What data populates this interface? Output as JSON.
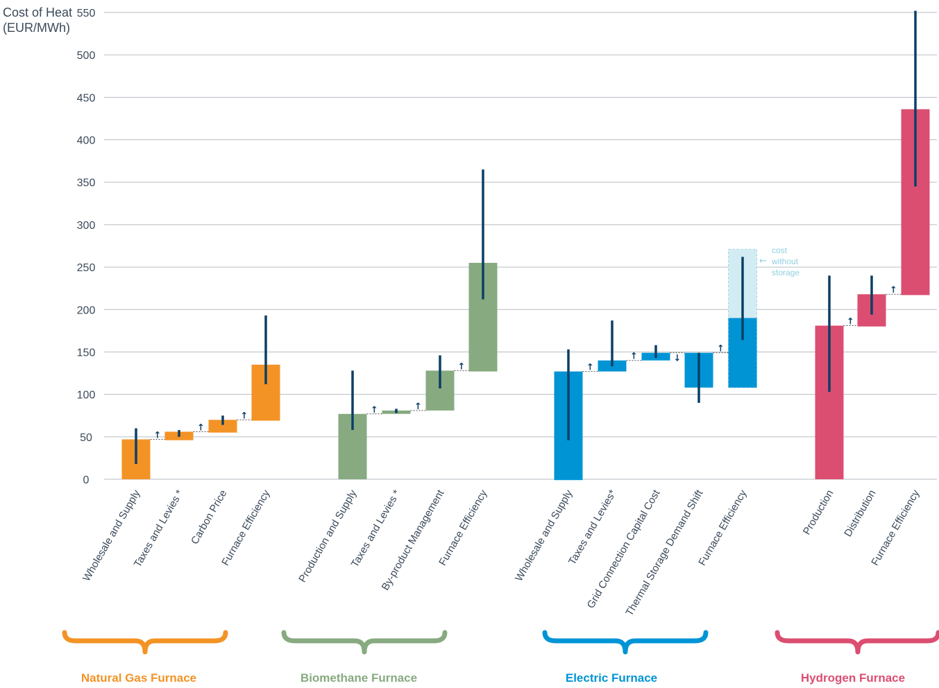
{
  "chart_data": {
    "type": "bar",
    "subtype": "waterfall",
    "ylabel_line1": "Cost of Heat",
    "ylabel_line2": "(EUR/MWh)",
    "ylim": [
      0,
      550
    ],
    "yticks": [
      0,
      50,
      100,
      150,
      200,
      250,
      300,
      350,
      400,
      450,
      500,
      550
    ],
    "grid": true,
    "groups": [
      {
        "name": "Natural Gas Furnace",
        "color": "#f39325",
        "bars": [
          {
            "label": "Wholesale and Supply",
            "base": 0,
            "top": 47,
            "err_low": 18,
            "err_high": 60
          },
          {
            "label": "Taxes and Levies *",
            "base": 46,
            "top": 56,
            "err_low": 50,
            "err_high": 58,
            "step": "up"
          },
          {
            "label": "Carbon Price",
            "base": 55,
            "top": 70,
            "err_low": 64,
            "err_high": 75,
            "step": "up"
          },
          {
            "label": "Furnace Efficiency",
            "base": 69,
            "top": 135,
            "err_low": 112,
            "err_high": 193,
            "step": "up"
          }
        ]
      },
      {
        "name": "Biomethane Furnace",
        "color": "#87aa80",
        "bars": [
          {
            "label": "Production and Supply",
            "base": 0,
            "top": 77,
            "err_low": 58,
            "err_high": 128
          },
          {
            "label": "Taxes and Levies *",
            "base": 77,
            "top": 81,
            "err_low": 78,
            "err_high": 83,
            "step": "up"
          },
          {
            "label": "By-product Management",
            "base": 81,
            "top": 128,
            "err_low": 107,
            "err_high": 146,
            "step": "up"
          },
          {
            "label": "Furnace Efficiency",
            "base": 127,
            "top": 255,
            "err_low": 212,
            "err_high": 365,
            "step": "up"
          }
        ]
      },
      {
        "name": "Electric Furnace",
        "color": "#0094d5",
        "bars": [
          {
            "label": "Wholesale and Supply",
            "base": -1,
            "top": 127,
            "err_low": 46,
            "err_high": 153
          },
          {
            "label": "Taxes and Levies*",
            "base": 127,
            "top": 140,
            "err_low": 133,
            "err_high": 187,
            "step": "up"
          },
          {
            "label": "Grid Connection Capital Cost",
            "base": 140,
            "top": 149,
            "err_low": 143,
            "err_high": 158,
            "step": "up"
          },
          {
            "label": "Thermal Storage Demand Shift",
            "base": 108,
            "top": 149,
            "err_low": 90,
            "err_high": 149,
            "step": "down"
          },
          {
            "label": "Furnace Efficiency",
            "base": 108,
            "top": 190,
            "ghost_top": 271,
            "err_low": 164,
            "err_high": 262,
            "step": "up"
          }
        ]
      },
      {
        "name": "Hydrogen Furnace",
        "color": "#db4e71",
        "bars": [
          {
            "label": "Production",
            "base": 0,
            "top": 181,
            "err_low": 103,
            "err_high": 240
          },
          {
            "label": "Distribution",
            "base": 180,
            "top": 218,
            "err_low": 194,
            "err_high": 240,
            "step": "up"
          },
          {
            "label": "Furnace Efficiency",
            "base": 217,
            "top": 436,
            "err_low": 345,
            "err_high": 552,
            "step": "up"
          }
        ]
      }
    ],
    "annotation": [
      "cost",
      "without",
      "storage"
    ]
  }
}
